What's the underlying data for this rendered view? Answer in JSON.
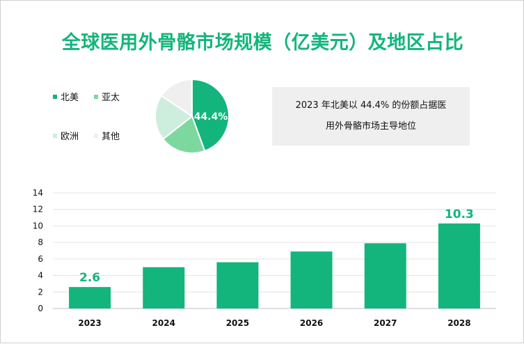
{
  "title": "全球医用外骨骼市场规模（亿美元）及地区占比",
  "note": {
    "line1": "2023 年北美以 44.4% 的份额占据医",
    "line2": "用外骨骼市场主导地位"
  },
  "colors": {
    "accent": "#13b57c",
    "bar": "#13b57c",
    "pie_north_america": "#13b57c",
    "pie_asia_pacific": "#7dd8a0",
    "pie_europe": "#cdeedd",
    "pie_other": "#efefef"
  },
  "chart_data": [
    {
      "type": "pie",
      "labels": [
        "北美",
        "亚太",
        "欧洲",
        "其他"
      ],
      "values": [
        44.4,
        20,
        20,
        15.6
      ],
      "slice_label": "44.4%",
      "legend_position": "left"
    },
    {
      "type": "bar",
      "categories": [
        "2023",
        "2024",
        "2025",
        "2026",
        "2027",
        "2028"
      ],
      "values": [
        2.6,
        5.0,
        5.6,
        6.9,
        7.9,
        10.3
      ],
      "data_labels": [
        "2.6",
        "",
        "",
        "",
        "",
        "10.3"
      ],
      "yticks": [
        "0",
        "2",
        "4",
        "6",
        "8",
        "10",
        "12",
        "14"
      ],
      "ylim": [
        0,
        14
      ],
      "grid": true
    }
  ]
}
